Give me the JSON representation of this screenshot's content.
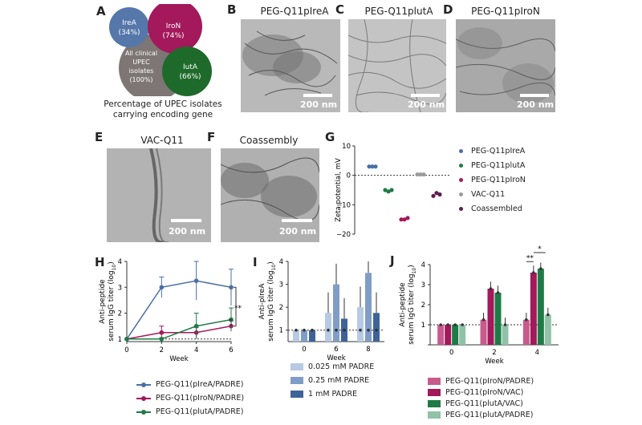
{
  "panels": {
    "A": "A",
    "B": "B",
    "C": "C",
    "D": "D",
    "E": "E",
    "F": "F",
    "G": "G",
    "H": "H",
    "I": "I",
    "J": "J"
  },
  "venn": {
    "circles": [
      {
        "name": "IreA",
        "pct": "(34%)",
        "color": "#5577aa"
      },
      {
        "name": "IroN",
        "pct": "(74%)",
        "color": "#a3195b"
      },
      {
        "name": "All clinical UPEC isolates",
        "pct": "(100%)",
        "color": "#7d7674"
      },
      {
        "name": "IutA",
        "pct": "(66%)",
        "color": "#1e6a2a"
      }
    ],
    "line_allclin": "All clinical",
    "line_upec": "UPEC",
    "line_isolates": "isolates",
    "caption_line1": "Percentage of UPEC isolates",
    "caption_line2": "carrying encoding gene"
  },
  "tem": {
    "B": {
      "title": "PEG-Q11pIreA",
      "scale": "200 nm"
    },
    "C": {
      "title": "PEG-Q11plutA",
      "scale": "200 nm"
    },
    "D": {
      "title": "PEG-Q11pIroN",
      "scale": "200 nm"
    },
    "E": {
      "title": "VAC-Q11",
      "scale": "200 nm"
    },
    "F": {
      "title": "Coassembly",
      "scale": "200 nm"
    }
  },
  "colors": {
    "ireA": "#4a6fa5",
    "iroN": "#a3195b",
    "iutA": "#1e7b46",
    "iutA_light": "#8fc2a6",
    "iroN_light": "#c75b8c",
    "vac": "#9a9a9a",
    "coassembled": "#5b1f4f",
    "dose_low": "#b7c9e3",
    "dose_mid": "#7f9dc7",
    "dose_high": "#3e6399"
  },
  "chart_data": [
    {
      "panel": "G",
      "type": "scatter",
      "ylabel": "Zeta potential, mV",
      "ylim": [
        -20,
        10
      ],
      "yticks": [
        "10",
        "0",
        "−10",
        "−20"
      ],
      "series": [
        {
          "name": "PEG-Q11pIreA",
          "values": [
            3,
            3,
            3
          ]
        },
        {
          "name": "PEG-Q11plutA",
          "values": [
            -5,
            -5.5,
            -5
          ]
        },
        {
          "name": "PEG-Q11pIroN",
          "values": [
            -15,
            -15,
            -14.5
          ]
        },
        {
          "name": "VAC-Q11",
          "values": [
            0.3,
            0.3,
            0.3
          ]
        },
        {
          "name": "Coassembled",
          "values": [
            -7,
            -6,
            -6.5
          ]
        }
      ],
      "legend_position": "right"
    },
    {
      "panel": "H",
      "type": "line",
      "xlabel": "Week",
      "ylabel_line1": "Anti-peptide",
      "ylabel_line2": "serum IgG titer (log",
      "ylabel_sub": "10",
      "ylabel_close": ")",
      "x": [
        0,
        2,
        4,
        6
      ],
      "xticks": [
        "0",
        "2",
        "4",
        "6"
      ],
      "yticks": [
        "1",
        "2",
        "3",
        "4"
      ],
      "ylim": [
        0.9,
        4
      ],
      "series": [
        {
          "name": "PEG-Q11(pIreA/PADRE)",
          "values": [
            1,
            3.0,
            3.25,
            3.0
          ],
          "err": [
            0,
            0.4,
            0.75,
            0.7
          ]
        },
        {
          "name": "PEG-Q11(pIroN/PADRE)",
          "values": [
            1,
            1.25,
            1.25,
            1.5
          ],
          "err": [
            0,
            0.25,
            0.2,
            0.2
          ]
        },
        {
          "name": "PEG-Q11(plutA/PADRE)",
          "values": [
            1,
            1.0,
            1.5,
            1.75
          ],
          "err": [
            0,
            0.05,
            0.5,
            0.45
          ]
        }
      ],
      "significance": "**",
      "legend_position": "bottom"
    },
    {
      "panel": "I",
      "type": "bar",
      "xlabel": "Week",
      "ylabel_line1": "Anti-pIreA",
      "ylabel_line2": "serum IgG titer (log",
      "ylabel_sub": "10",
      "ylabel_close": ")",
      "categories": [
        "0",
        "6",
        "8"
      ],
      "yticks": [
        "1",
        "2",
        "3",
        "4"
      ],
      "ylim": [
        0.5,
        4
      ],
      "series": [
        {
          "name": "0.025 mM PADRE",
          "values": [
            1,
            1.75,
            2.0
          ]
        },
        {
          "name": "0.25 mM PADRE",
          "values": [
            1,
            3.0,
            3.5
          ]
        },
        {
          "name": "1 mM PADRE",
          "values": [
            1,
            1.5,
            1.75
          ]
        }
      ],
      "legend_position": "bottom"
    },
    {
      "panel": "J",
      "type": "bar",
      "xlabel": "Week",
      "ylabel_line1": "Anti-peptide",
      "ylabel_line2": "serum IgG titer (log",
      "ylabel_sub": "10",
      "ylabel_close": ")",
      "categories": [
        "0",
        "2",
        "4"
      ],
      "yticks": [
        "0",
        "1",
        "2",
        "3",
        "4"
      ],
      "ylim": [
        0,
        4
      ],
      "series": [
        {
          "name": "PEG-Q11(pIroN/PADRE)",
          "values": [
            1,
            1.25,
            1.25
          ]
        },
        {
          "name": "PEG-Q11(pIroN/VAC)",
          "values": [
            1,
            2.8,
            3.6
          ]
        },
        {
          "name": "PEG-Q11(plutA/VAC)",
          "values": [
            1,
            2.6,
            3.8
          ]
        },
        {
          "name": "PEG-Q11(plutA/PADRE)",
          "values": [
            1,
            1.0,
            1.5
          ]
        }
      ],
      "significance": [
        "**",
        "*"
      ],
      "legend_position": "bottom"
    }
  ]
}
